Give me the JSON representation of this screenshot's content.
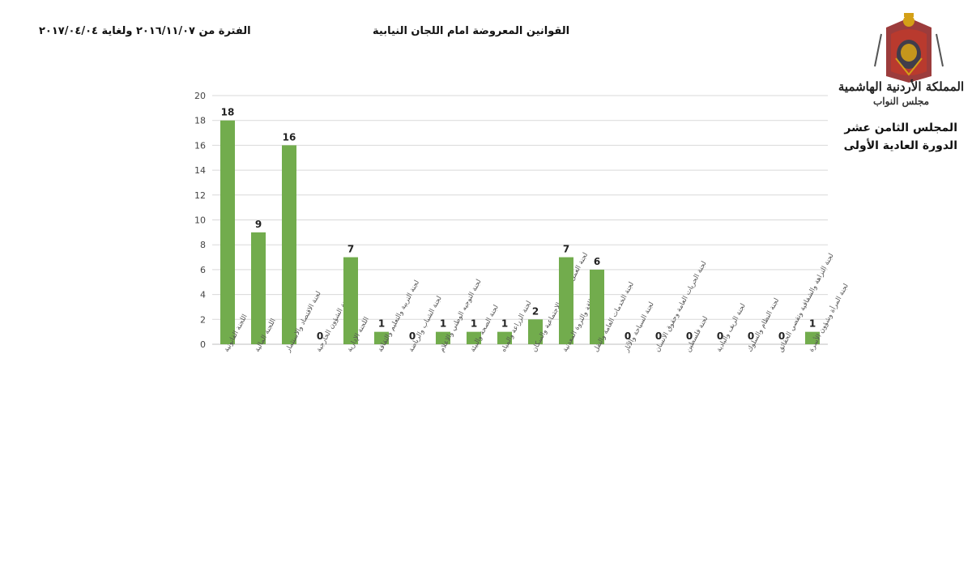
{
  "header": {
    "title": "القوانين المعروضة امام اللجان النيابية",
    "period": "الفترة من ٢٠١٦/١١/٠٧ ولغاية ٢٠١٧/٠٤/٠٤"
  },
  "institution": {
    "name": "المملكة الأردنية الهاشمية",
    "sub": "مجلس النواب",
    "session": "المجلس الثامن عشر",
    "term": "الدورة العادية الأولى"
  },
  "colors": {
    "bar": "#72ac4d",
    "grid": "#d9d9d9",
    "axis": "#bfbfbf"
  },
  "chart_data": {
    "type": "bar",
    "categories": [
      "اللجنة القانونية",
      "اللجنة المالية",
      "لجنة الاقتصاد والاستثمار",
      "لجنة الشؤون الخارجية",
      "اللجنة الإدارية",
      "لجنة التربية والتعليم والثقافة",
      "لجنة الشباب والرياضة",
      "لجنة التوجيه الوطني والاعلام",
      "لجنة الصحة والبيئة",
      "لجنة الزراعة والمياه",
      "لجنة العمل والتنمية الاجتماعية والسكان",
      "لجنة الطاقة والثروة المعدنية",
      "لجنة الخدمات العامة والنقل",
      "لجنة السياحة والآثار",
      "لجنة الحريات العامة وحقوق الانسان",
      "لجنة فلسطين",
      "لجنة الريف والبادية",
      "لجنة النظام والسلوك",
      "لجنة النزاهة والشفافية وتقصي الحقائق",
      "لجنة المرأة وشؤون الأسرة"
    ],
    "values": [
      18,
      9,
      16,
      0,
      7,
      1,
      0,
      1,
      1,
      1,
      2,
      7,
      6,
      0,
      0,
      0,
      0,
      0,
      0,
      1
    ],
    "ylim": [
      0,
      20
    ],
    "yticks": [
      0,
      2,
      4,
      6,
      8,
      10,
      12,
      14,
      16,
      18,
      20
    ],
    "grid": true,
    "legend": "none"
  }
}
